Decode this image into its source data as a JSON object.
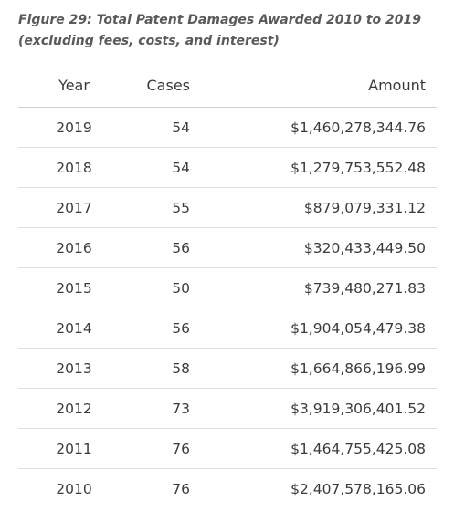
{
  "caption": "Figure 29: Total Patent Damages Awarded 2010 to 2019 (excluding fees, costs, and interest)",
  "headers": {
    "year": "Year",
    "cases": "Cases",
    "amount": "Amount"
  },
  "chart_data": {
    "type": "table",
    "title": "Figure 29: Total Patent Damages Awarded 2010 to 2019 (excluding fees, costs, and interest)",
    "columns": [
      "Year",
      "Cases",
      "Amount"
    ],
    "rows": [
      {
        "year": "2019",
        "cases": "54",
        "amount": "$1,460,278,344.76"
      },
      {
        "year": "2018",
        "cases": "54",
        "amount": "$1,279,753,552.48"
      },
      {
        "year": "2017",
        "cases": "55",
        "amount": "$879,079,331.12"
      },
      {
        "year": "2016",
        "cases": "56",
        "amount": "$320,433,449.50"
      },
      {
        "year": "2015",
        "cases": "50",
        "amount": "$739,480,271.83"
      },
      {
        "year": "2014",
        "cases": "56",
        "amount": "$1,904,054,479.38"
      },
      {
        "year": "2013",
        "cases": "58",
        "amount": "$1,664,866,196.99"
      },
      {
        "year": "2012",
        "cases": "73",
        "amount": "$3,919,306,401.52"
      },
      {
        "year": "2011",
        "cases": "76",
        "amount": "$1,464,755,425.08"
      },
      {
        "year": "2010",
        "cases": "76",
        "amount": "$2,407,578,165.06"
      }
    ]
  }
}
